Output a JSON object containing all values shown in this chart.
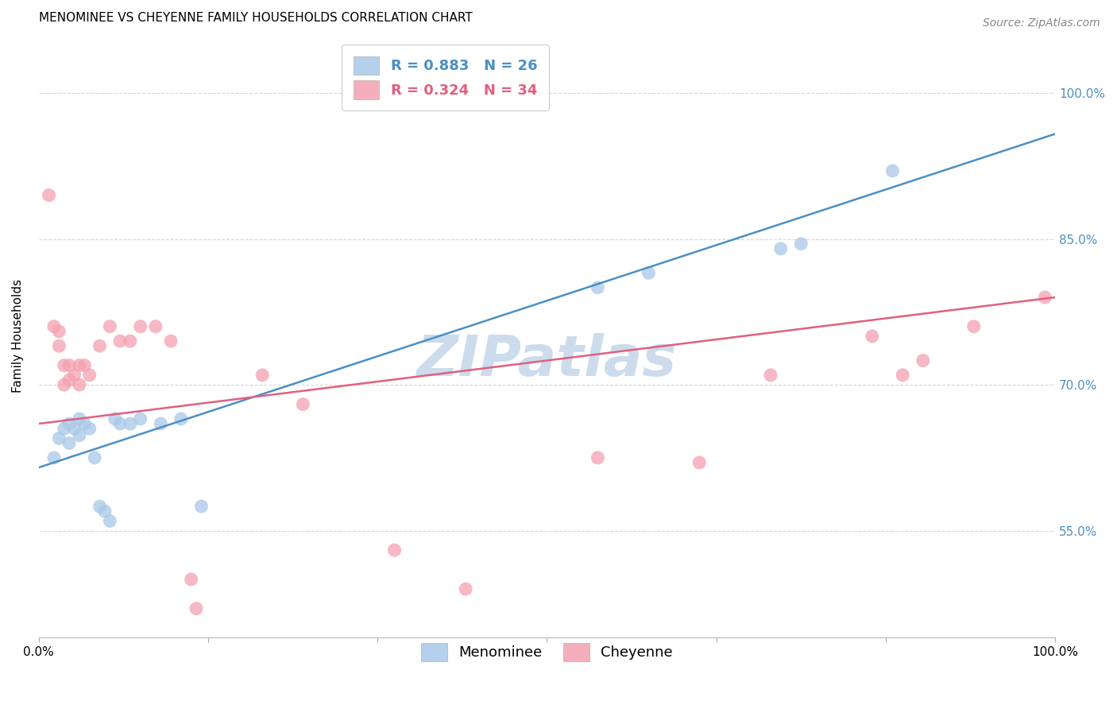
{
  "title": "MENOMINEE VS CHEYENNE FAMILY HOUSEHOLDS CORRELATION CHART",
  "source": "Source: ZipAtlas.com",
  "ylabel": "Family Households",
  "watermark": "ZIPatlas",
  "legend_blue_r": "R = 0.883",
  "legend_blue_n": "N = 26",
  "legend_pink_r": "R = 0.324",
  "legend_pink_n": "N = 34",
  "legend_label1": "Menominee",
  "legend_label2": "Cheyenne",
  "xmin": 0.0,
  "xmax": 1.0,
  "ymin": 0.44,
  "ymax": 1.06,
  "yticks": [
    0.55,
    0.7,
    0.85,
    1.0
  ],
  "ytick_labels": [
    "55.0%",
    "70.0%",
    "85.0%",
    "100.0%"
  ],
  "xticks": [
    0.0,
    0.1667,
    0.3333,
    0.5,
    0.6667,
    0.8333,
    1.0
  ],
  "xtick_labels": [
    "0.0%",
    "",
    "",
    "",
    "",
    "",
    "100.0%"
  ],
  "blue_color": "#a8c8e8",
  "pink_color": "#f4a0b0",
  "trendline_blue": "#4a90c4",
  "trendline_pink": "#e06080",
  "background_color": "#ffffff",
  "grid_color": "#d8d8d8",
  "blue_scatter_x": [
    0.015,
    0.02,
    0.025,
    0.03,
    0.03,
    0.035,
    0.04,
    0.04,
    0.045,
    0.05,
    0.055,
    0.06,
    0.065,
    0.07,
    0.075,
    0.08,
    0.09,
    0.1,
    0.12,
    0.14,
    0.16,
    0.55,
    0.6,
    0.73,
    0.75,
    0.84
  ],
  "blue_scatter_y": [
    0.625,
    0.645,
    0.655,
    0.66,
    0.64,
    0.655,
    0.665,
    0.648,
    0.66,
    0.655,
    0.625,
    0.575,
    0.57,
    0.56,
    0.665,
    0.66,
    0.66,
    0.665,
    0.66,
    0.665,
    0.575,
    0.8,
    0.815,
    0.84,
    0.845,
    0.92
  ],
  "pink_scatter_x": [
    0.01,
    0.015,
    0.02,
    0.02,
    0.025,
    0.025,
    0.03,
    0.03,
    0.035,
    0.04,
    0.04,
    0.045,
    0.05,
    0.06,
    0.07,
    0.08,
    0.09,
    0.1,
    0.115,
    0.13,
    0.15,
    0.155,
    0.22,
    0.26,
    0.35,
    0.42,
    0.55,
    0.65,
    0.72,
    0.82,
    0.85,
    0.87,
    0.92,
    0.99
  ],
  "pink_scatter_y": [
    0.895,
    0.76,
    0.755,
    0.74,
    0.72,
    0.7,
    0.72,
    0.705,
    0.71,
    0.72,
    0.7,
    0.72,
    0.71,
    0.74,
    0.76,
    0.745,
    0.745,
    0.76,
    0.76,
    0.745,
    0.5,
    0.47,
    0.71,
    0.68,
    0.53,
    0.49,
    0.625,
    0.62,
    0.71,
    0.75,
    0.71,
    0.725,
    0.76,
    0.79
  ],
  "blue_line_x": [
    0.0,
    1.0
  ],
  "blue_line_y": [
    0.615,
    0.958
  ],
  "pink_line_x": [
    0.0,
    1.0
  ],
  "pink_line_y": [
    0.66,
    0.79
  ],
  "title_fontsize": 11,
  "axis_label_fontsize": 11,
  "tick_fontsize": 11,
  "legend_fontsize": 13,
  "watermark_fontsize": 52,
  "watermark_color": "#ccdcec",
  "source_fontsize": 10,
  "right_ytick_color": "#5090c0",
  "right_ytick_fontsize": 11
}
